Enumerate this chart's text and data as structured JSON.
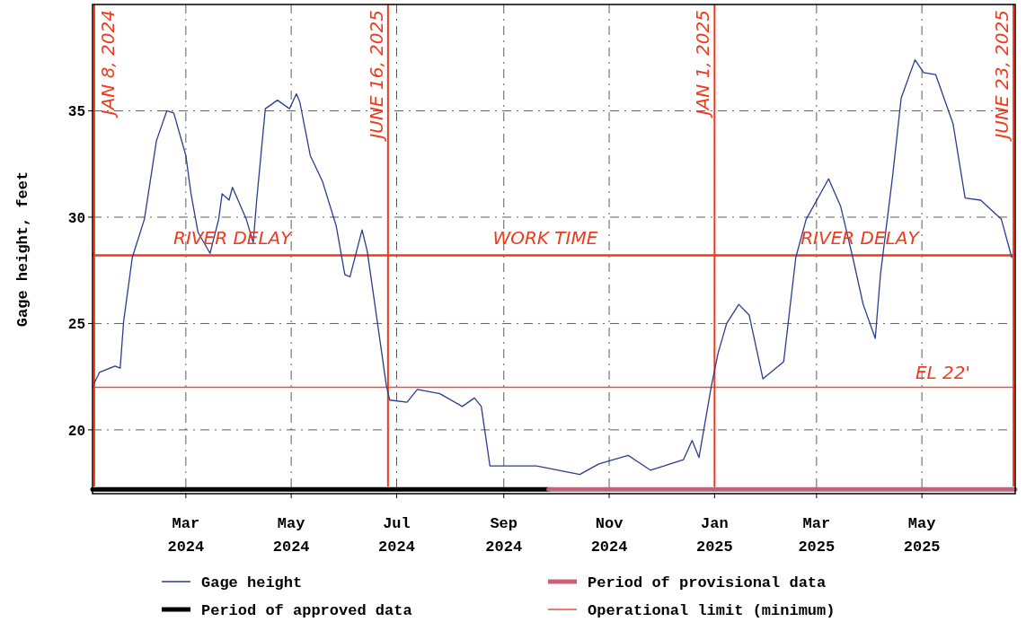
{
  "chart_data": {
    "type": "line",
    "ylabel": "Gage height, feet",
    "xlim": [
      "2024-01-07",
      "2025-06-24"
    ],
    "xticks": [
      {
        "value": "2024-03-01",
        "label": "Mar 2024"
      },
      {
        "value": "2024-05-01",
        "label": "May 2024"
      },
      {
        "value": "2024-07-01",
        "label": "Jul 2024"
      },
      {
        "value": "2024-09-01",
        "label": "Sep 2024"
      },
      {
        "value": "2024-11-01",
        "label": "Nov 2024"
      },
      {
        "value": "2025-01-01",
        "label": "Jan 2025"
      },
      {
        "value": "2025-03-01",
        "label": "Mar 2025"
      },
      {
        "value": "2025-05-01",
        "label": "May 2025"
      }
    ],
    "ylim": [
      17,
      40
    ],
    "yticks": [
      20,
      25,
      30,
      35
    ],
    "grid": true,
    "legend": "bottom",
    "marker": "none",
    "line_style": "solid",
    "series": [
      {
        "name": "Gage height",
        "color": "#2b3d8f",
        "x": [
          "2024-01-08",
          "2024-01-11",
          "2024-01-20",
          "2024-01-23",
          "2024-01-25",
          "2024-01-30",
          "2024-02-06",
          "2024-02-13",
          "2024-02-19",
          "2024-02-23",
          "2024-03-01",
          "2024-03-04",
          "2024-03-08",
          "2024-03-15",
          "2024-03-20",
          "2024-03-22",
          "2024-03-26",
          "2024-03-28",
          "2024-04-05",
          "2024-04-09",
          "2024-04-11",
          "2024-04-16",
          "2024-04-23",
          "2024-04-30",
          "2024-05-04",
          "2024-05-06",
          "2024-05-12",
          "2024-05-19",
          "2024-05-27",
          "2024-06-01",
          "2024-06-04",
          "2024-06-11",
          "2024-06-14",
          "2024-06-21",
          "2024-06-25",
          "2024-06-27",
          "2024-07-07",
          "2024-07-13",
          "2024-07-26",
          "2024-08-08",
          "2024-08-15",
          "2024-08-19",
          "2024-08-24",
          "2024-09-01",
          "2024-09-20",
          "2024-10-15",
          "2024-10-26",
          "2024-11-12",
          "2024-11-25",
          "2024-12-14",
          "2024-12-19",
          "2024-12-23",
          "2024-12-30",
          "2025-01-03",
          "2025-01-08",
          "2025-01-15",
          "2025-01-21",
          "2025-01-29",
          "2025-02-10",
          "2025-02-17",
          "2025-02-23",
          "2025-03-08",
          "2025-03-15",
          "2025-03-22",
          "2025-03-28",
          "2025-04-04",
          "2025-04-07",
          "2025-04-14",
          "2025-04-19",
          "2025-04-27",
          "2025-05-02",
          "2025-05-09",
          "2025-05-19",
          "2025-05-26",
          "2025-06-04",
          "2025-06-16",
          "2025-06-22"
        ],
        "values": [
          22.2,
          22.7,
          23.0,
          22.9,
          25.1,
          28.1,
          29.9,
          33.6,
          35.0,
          34.9,
          32.9,
          31.1,
          29.3,
          28.3,
          29.9,
          31.1,
          30.8,
          31.4,
          29.9,
          28.8,
          30.8,
          35.1,
          35.5,
          35.1,
          35.8,
          35.4,
          32.9,
          31.7,
          29.6,
          27.3,
          27.2,
          29.4,
          28.4,
          24.4,
          22.1,
          21.4,
          21.3,
          21.9,
          21.7,
          21.1,
          21.5,
          21.1,
          18.3,
          18.3,
          18.3,
          17.9,
          18.4,
          18.8,
          18.1,
          18.6,
          19.5,
          18.7,
          22.0,
          23.6,
          25.0,
          25.9,
          25.4,
          22.4,
          23.2,
          28.1,
          29.9,
          31.8,
          30.5,
          28.1,
          25.9,
          24.3,
          27.3,
          31.9,
          35.6,
          37.4,
          36.8,
          36.7,
          34.4,
          30.9,
          30.8,
          29.9,
          28.1
        ]
      },
      {
        "name": "Period of approved data",
        "color": "#000000",
        "x": [
          "2024-01-07",
          "2024-09-27"
        ],
        "values": [
          17.2,
          17.2
        ]
      },
      {
        "name": "Period of provisional data",
        "color": "#c8607a",
        "x": [
          "2024-09-27",
          "2025-06-24"
        ],
        "values": [
          17.2,
          17.2
        ]
      }
    ],
    "ref_lines": [
      {
        "axis": "y",
        "value": 22,
        "label": "Operational limit (minimum)",
        "color": "#e8503a"
      },
      {
        "axis": "y",
        "value": 28.2,
        "color": "#f03a1e"
      },
      {
        "axis": "x",
        "value": "2024-01-08",
        "label": "JAN 8, 2024",
        "color": "#f03a1e"
      },
      {
        "axis": "x",
        "value": "2024-06-26",
        "label": "JUNE 16, 2025",
        "color": "#f03a1e"
      },
      {
        "axis": "x",
        "value": "2025-01-01",
        "label": "JAN 1, 2025",
        "color": "#f03a1e"
      },
      {
        "axis": "x",
        "value": "2025-06-23",
        "label": "JUNE 23, 2025",
        "color": "#f03a1e"
      }
    ],
    "annotations": [
      {
        "text": "RIVER DELAY",
        "x": "2024-03-28",
        "y": 28.4
      },
      {
        "text": "WORK TIME",
        "x": "2024-09-25",
        "y": 28.4
      },
      {
        "text": "RIVER DELAY",
        "x": "2025-03-26",
        "y": 28.4
      },
      "EL 22'"
    ]
  }
}
